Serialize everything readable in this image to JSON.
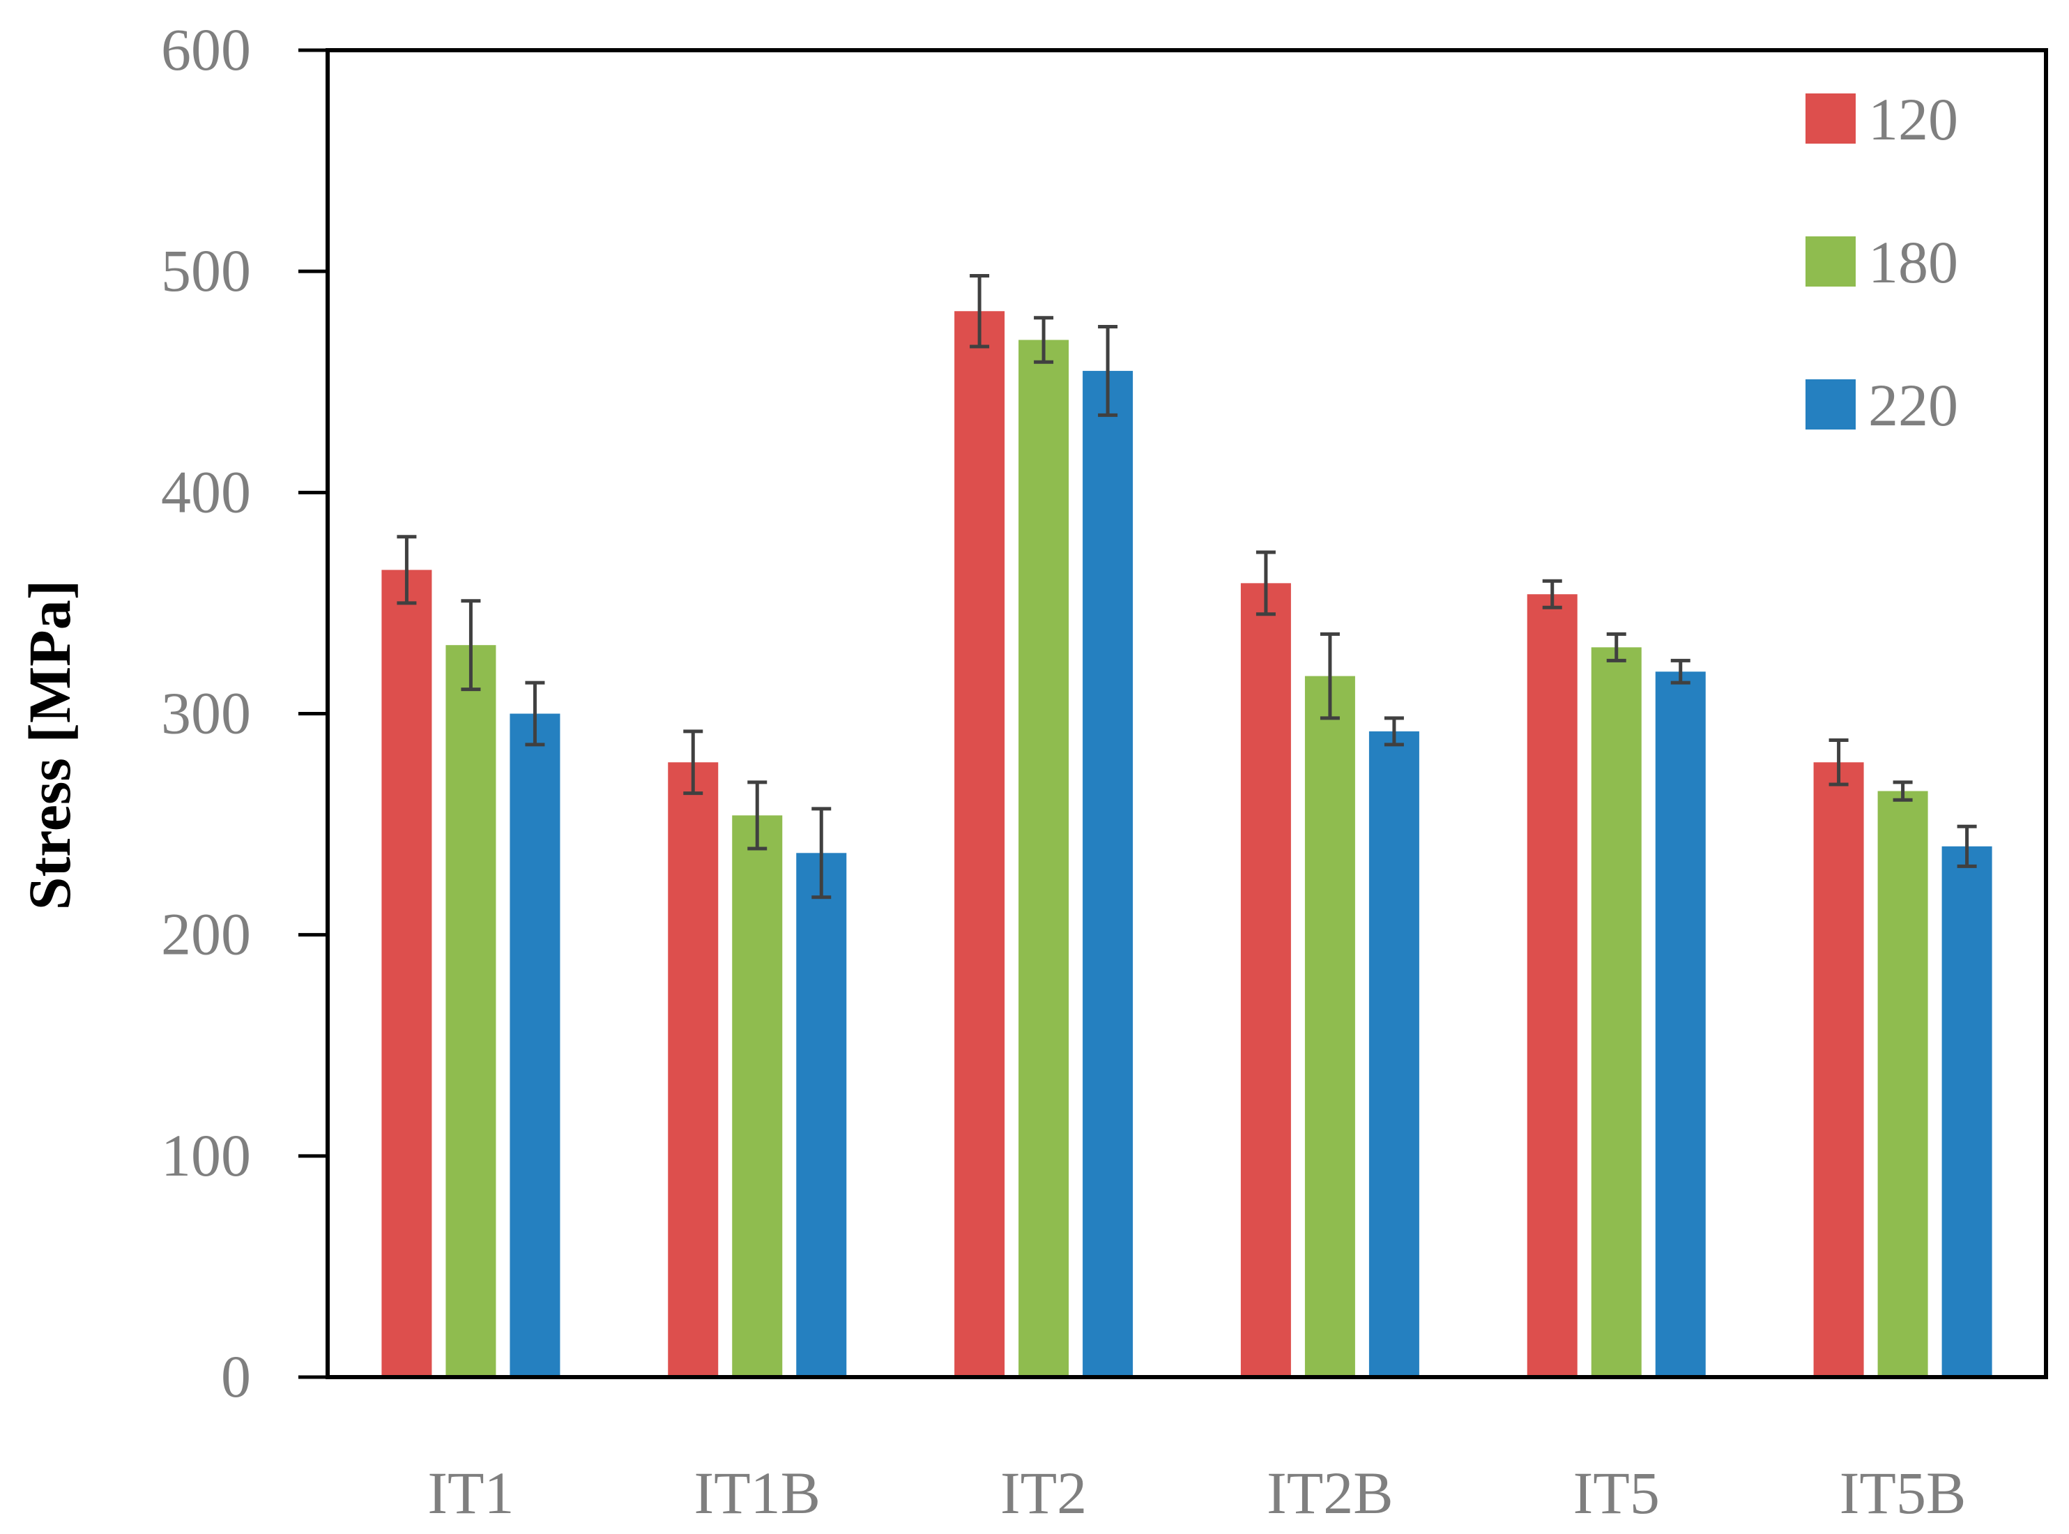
{
  "chart_data": {
    "type": "bar",
    "title": "",
    "xlabel": "",
    "ylabel": "Stress [MPa]",
    "ylim": [
      0,
      600
    ],
    "yticks": [
      0,
      100,
      200,
      300,
      400,
      500,
      600
    ],
    "ytick_labels": [
      "0",
      "100",
      "200",
      "300",
      "400",
      "500",
      "600"
    ],
    "categories": [
      "IT1",
      "IT1B",
      "IT2",
      "IT2B",
      "IT5",
      "IT5B"
    ],
    "series": [
      {
        "name": "120",
        "color": "#dd4f4d",
        "values": [
          365,
          278,
          482,
          359,
          354,
          278
        ],
        "errors": [
          15,
          14,
          16,
          14,
          6,
          10
        ]
      },
      {
        "name": "180",
        "color": "#8fbc4f",
        "values": [
          331,
          254,
          469,
          317,
          330,
          265
        ],
        "errors": [
          20,
          15,
          10,
          19,
          6,
          4
        ]
      },
      {
        "name": "220",
        "color": "#2580c0",
        "values": [
          300,
          237,
          455,
          292,
          319,
          240
        ],
        "errors": [
          14,
          20,
          20,
          6,
          5,
          9
        ]
      }
    ],
    "grid": false,
    "legend_position": "top-right",
    "error_bar_color": "#404040"
  }
}
